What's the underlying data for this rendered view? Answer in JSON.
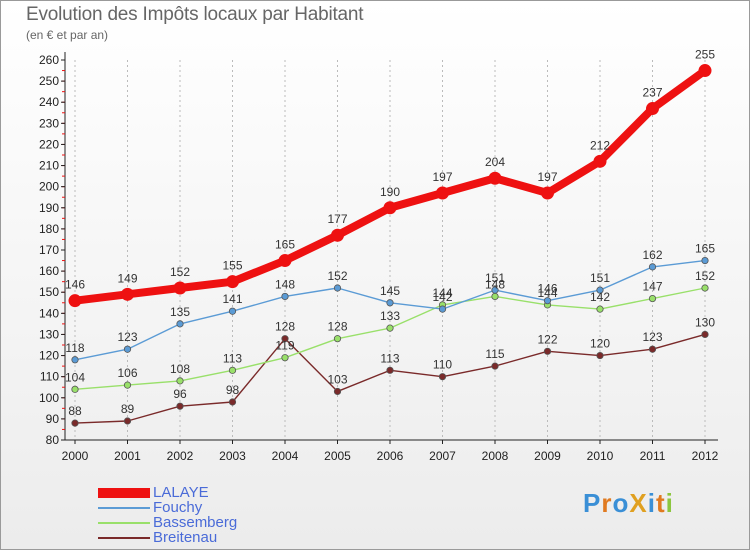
{
  "header": {
    "title": "Evolution des Impôts locaux par Habitant",
    "subtitle": "(en € et par an)"
  },
  "logo": {
    "text": "ProXiti",
    "letters": [
      "P",
      "r",
      "o",
      "X",
      "i",
      "t",
      "i"
    ],
    "colors": [
      "#3a8fd6",
      "#e07a20",
      "#3a8fd6",
      "#e0a020",
      "#3a8fd6",
      "#e07a20",
      "#8cc63f"
    ]
  },
  "chart_data": {
    "type": "line",
    "title": "Evolution des Impôts locaux par Habitant",
    "subtitle": "(en € et par an)",
    "xlabel": "",
    "ylabel": "",
    "x": [
      "2000",
      "2001",
      "2002",
      "2003",
      "2004",
      "2005",
      "2006",
      "2007",
      "2008",
      "2009",
      "2010",
      "2011",
      "2012"
    ],
    "ylim": [
      80,
      260
    ],
    "yticks": [
      80,
      90,
      100,
      110,
      120,
      130,
      140,
      150,
      160,
      170,
      180,
      190,
      200,
      210,
      220,
      230,
      240,
      250,
      260
    ],
    "grid": "vertical-dashed",
    "legend_position": "bottom-left",
    "series": [
      {
        "name": "LALAYE",
        "color": "#ee1111",
        "values": [
          146,
          149,
          152,
          155,
          165,
          177,
          190,
          197,
          204,
          197,
          212,
          237,
          255
        ]
      },
      {
        "name": "Fouchy",
        "color": "#5b9bd5",
        "values": [
          118,
          123,
          135,
          141,
          148,
          152,
          145,
          142,
          151,
          146,
          151,
          162,
          165
        ]
      },
      {
        "name": "Bassemberg",
        "color": "#99e06a",
        "values": [
          104,
          106,
          108,
          113,
          119,
          128,
          133,
          144,
          148,
          144,
          142,
          147,
          152
        ]
      },
      {
        "name": "Breitenau",
        "color": "#7a2a2a",
        "values": [
          88,
          89,
          96,
          98,
          128,
          103,
          113,
          110,
          115,
          122,
          120,
          123,
          130
        ]
      }
    ]
  }
}
